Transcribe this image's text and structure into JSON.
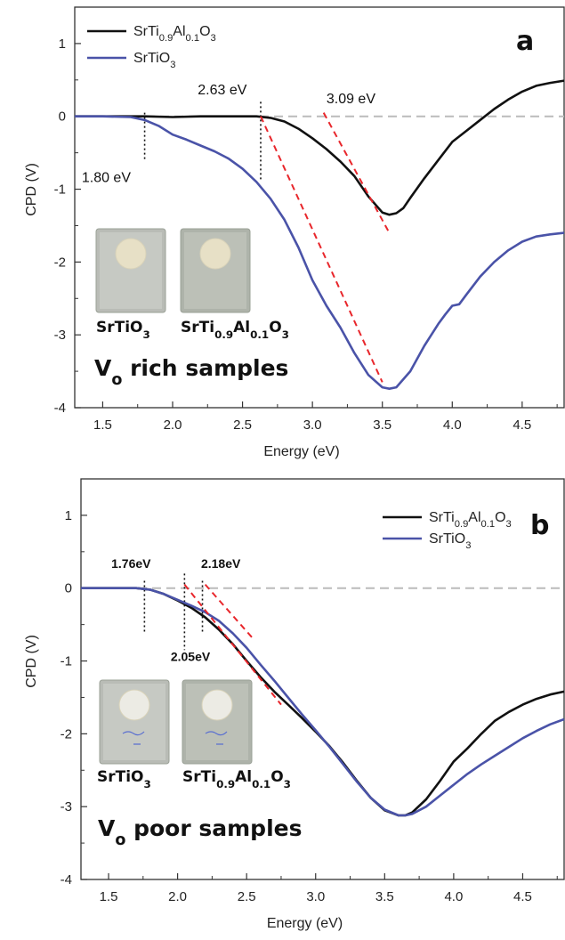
{
  "chart_data": [
    {
      "type": "line",
      "panel_label": "a",
      "xlabel": "Energy (eV)",
      "ylabel": "CPD (V)",
      "xlim": [
        1.3,
        4.8
      ],
      "ylim": [
        -4,
        1.5
      ],
      "xticks": [
        1.5,
        2.0,
        2.5,
        3.0,
        3.5,
        4.0,
        4.5
      ],
      "xtick_labels": [
        "1.5",
        "2.0",
        "2.5",
        "3.0",
        "3.5",
        "4.0",
        "4.5"
      ],
      "yticks": [
        1,
        0,
        -1,
        -2,
        -3,
        -4
      ],
      "ytick_labels": [
        "1",
        "0",
        "-1",
        "-2",
        "-3",
        "-4"
      ],
      "legend": {
        "placement": "top-left",
        "entries": [
          {
            "base": "SrTi",
            "sub1": "0.9",
            "mid": "Al",
            "sub2": "0.1",
            "tail": "O",
            "sub3": "3",
            "color": "#111111"
          },
          {
            "base": "SrTiO",
            "sub1": "3",
            "color": "#4a53a8"
          }
        ]
      },
      "series": [
        {
          "color": "#111111",
          "x": [
            1.3,
            1.5,
            1.8,
            2.0,
            2.2,
            2.4,
            2.6,
            2.7,
            2.8,
            2.9,
            3.0,
            3.1,
            3.2,
            3.3,
            3.4,
            3.5,
            3.55,
            3.6,
            3.65,
            3.7,
            3.8,
            3.9,
            4.0,
            4.1,
            4.2,
            4.3,
            4.4,
            4.5,
            4.6,
            4.7,
            4.8
          ],
          "y": [
            0,
            0,
            0,
            -0.01,
            0,
            0,
            0,
            -0.02,
            -0.07,
            -0.17,
            -0.3,
            -0.45,
            -0.62,
            -0.82,
            -1.1,
            -1.32,
            -1.35,
            -1.33,
            -1.26,
            -1.12,
            -0.85,
            -0.6,
            -0.35,
            -0.2,
            -0.05,
            0.1,
            0.23,
            0.34,
            0.42,
            0.46,
            0.49
          ]
        },
        {
          "color": "#4a53a8",
          "x": [
            1.3,
            1.5,
            1.7,
            1.8,
            1.9,
            2.0,
            2.1,
            2.2,
            2.3,
            2.4,
            2.5,
            2.6,
            2.7,
            2.8,
            2.9,
            3.0,
            3.1,
            3.2,
            3.3,
            3.4,
            3.5,
            3.55,
            3.6,
            3.7,
            3.8,
            3.9,
            3.95,
            4.0,
            4.05,
            4.1,
            4.2,
            4.3,
            4.4,
            4.5,
            4.6,
            4.7,
            4.8
          ],
          "y": [
            0,
            0,
            -0.01,
            -0.05,
            -0.13,
            -0.25,
            -0.32,
            -0.4,
            -0.48,
            -0.58,
            -0.72,
            -0.9,
            -1.13,
            -1.42,
            -1.8,
            -2.25,
            -2.6,
            -2.9,
            -3.25,
            -3.55,
            -3.72,
            -3.74,
            -3.72,
            -3.5,
            -3.15,
            -2.85,
            -2.72,
            -2.6,
            -2.58,
            -2.45,
            -2.2,
            -2.0,
            -1.84,
            -1.72,
            -1.65,
            -1.62,
            -1.6
          ]
        }
      ],
      "zero_line": {
        "y": 0,
        "style": "dashed",
        "color": "#bbbbbb"
      },
      "vlines": [
        {
          "x": 1.8,
          "y0": -0.6,
          "y1": 0.05
        },
        {
          "x": 2.63,
          "y0": -0.9,
          "y1": 0.2
        }
      ],
      "tangents": [
        {
          "x0": 2.63,
          "y0": 0.0,
          "x1": 3.5,
          "y1": -3.65
        },
        {
          "x0": 3.08,
          "y0": 0.05,
          "x1": 3.55,
          "y1": -1.6
        }
      ],
      "annotations": [
        {
          "text": "1.80 eV",
          "x": 1.35,
          "y": -0.9
        },
        {
          "text": "2.63 eV",
          "x": 2.18,
          "y": 0.3
        },
        {
          "text": "3.09 eV",
          "x": 3.1,
          "y": 0.18
        }
      ],
      "inset": {
        "labels": [
          {
            "base": "SrTiO",
            "sub1": "3"
          },
          {
            "base": "SrTi",
            "sub1": "0.9",
            "mid": "Al",
            "sub2": "0.1",
            "tail": "O",
            "sub3": "3"
          }
        ],
        "note": {
          "base": "V",
          "sub": "o",
          "tail": " rich samples"
        }
      }
    },
    {
      "type": "line",
      "panel_label": "b",
      "xlabel": "Energy (eV)",
      "ylabel": "CPD (V)",
      "xlim": [
        1.3,
        4.8
      ],
      "ylim": [
        -4,
        1.5
      ],
      "xticks": [
        1.5,
        2.0,
        2.5,
        3.0,
        3.5,
        4.0,
        4.5
      ],
      "xtick_labels": [
        "1.5",
        "2.0",
        "2.5",
        "3.0",
        "3.5",
        "4.0",
        "4.5"
      ],
      "yticks": [
        1,
        0,
        -1,
        -2,
        -3,
        -4
      ],
      "ytick_labels": [
        "1",
        "0",
        "-1",
        "-2",
        "-3",
        "-4"
      ],
      "legend": {
        "placement": "top-right",
        "entries": [
          {
            "base": "SrTi",
            "sub1": "0.9",
            "mid": "Al",
            "sub2": "0.1",
            "tail": "O",
            "sub3": "3",
            "color": "#111111"
          },
          {
            "base": "SrTiO",
            "sub1": "3",
            "color": "#4a53a8"
          }
        ]
      },
      "series": [
        {
          "color": "#111111",
          "x": [
            1.3,
            1.5,
            1.7,
            1.8,
            1.9,
            2.0,
            2.1,
            2.2,
            2.3,
            2.4,
            2.5,
            2.6,
            2.7,
            2.8,
            2.9,
            3.0,
            3.1,
            3.2,
            3.3,
            3.4,
            3.5,
            3.6,
            3.65,
            3.7,
            3.8,
            3.9,
            4.0,
            4.1,
            4.2,
            4.3,
            4.4,
            4.5,
            4.6,
            4.7,
            4.8
          ],
          "y": [
            0,
            0,
            0,
            -0.02,
            -0.08,
            -0.17,
            -0.27,
            -0.4,
            -0.57,
            -0.77,
            -1.0,
            -1.22,
            -1.42,
            -1.6,
            -1.78,
            -1.97,
            -2.17,
            -2.4,
            -2.65,
            -2.88,
            -3.05,
            -3.12,
            -3.12,
            -3.08,
            -2.9,
            -2.65,
            -2.38,
            -2.2,
            -2.0,
            -1.82,
            -1.7,
            -1.6,
            -1.52,
            -1.46,
            -1.42
          ]
        },
        {
          "color": "#4a53a8",
          "x": [
            1.3,
            1.5,
            1.7,
            1.8,
            1.9,
            2.0,
            2.1,
            2.2,
            2.3,
            2.4,
            2.5,
            2.6,
            2.7,
            2.8,
            2.9,
            3.0,
            3.1,
            3.2,
            3.3,
            3.4,
            3.5,
            3.6,
            3.65,
            3.7,
            3.8,
            3.9,
            4.0,
            4.1,
            4.2,
            4.3,
            4.4,
            4.5,
            4.6,
            4.7,
            4.8
          ],
          "y": [
            0,
            0,
            0,
            -0.02,
            -0.08,
            -0.16,
            -0.24,
            -0.33,
            -0.45,
            -0.62,
            -0.82,
            -1.05,
            -1.27,
            -1.5,
            -1.73,
            -1.95,
            -2.18,
            -2.42,
            -2.66,
            -2.88,
            -3.04,
            -3.12,
            -3.12,
            -3.1,
            -3.0,
            -2.85,
            -2.7,
            -2.55,
            -2.42,
            -2.3,
            -2.18,
            -2.06,
            -1.96,
            -1.87,
            -1.8
          ]
        }
      ],
      "zero_line": {
        "y": 0,
        "style": "dashed",
        "color": "#bbbbbb"
      },
      "vlines": [
        {
          "x": 1.76,
          "y0": -0.6,
          "y1": 0.1
        },
        {
          "x": 2.05,
          "y0": -0.85,
          "y1": 0.2
        },
        {
          "x": 2.18,
          "y0": -0.6,
          "y1": 0.1
        }
      ],
      "tangents": [
        {
          "x0": 2.05,
          "y0": 0.05,
          "x1": 2.75,
          "y1": -1.6
        },
        {
          "x0": 2.2,
          "y0": 0.05,
          "x1": 2.55,
          "y1": -0.7
        }
      ],
      "annotations": [
        {
          "text": "1.76eV",
          "x": 1.52,
          "y": 0.28
        },
        {
          "text": "2.18eV",
          "x": 2.17,
          "y": 0.28
        },
        {
          "text": "2.05eV",
          "x": 1.95,
          "y": -1.0
        }
      ],
      "inset": {
        "labels": [
          {
            "base": "SrTiO",
            "sub1": "3"
          },
          {
            "base": "SrTi",
            "sub1": "0.9",
            "mid": "Al",
            "sub2": "0.1",
            "tail": "O",
            "sub3": "3"
          }
        ],
        "note": {
          "base": "V",
          "sub": "o",
          "tail": " poor samples"
        }
      }
    }
  ]
}
